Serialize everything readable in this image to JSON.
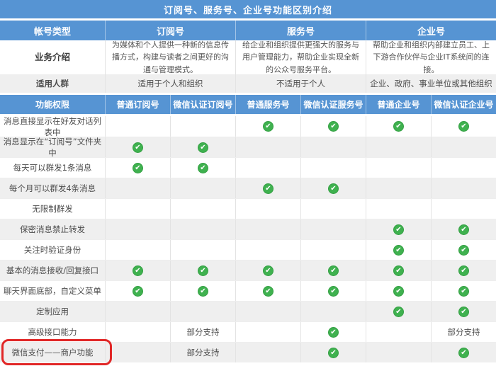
{
  "title": "订阅号、服务号、企业号功能区别介绍",
  "header": {
    "account_type_label": "帐号类型",
    "groups": [
      "订阅号",
      "服务号",
      "企业号"
    ]
  },
  "business_intro": {
    "label": "业务介绍",
    "cells": [
      "为媒体和个人提供一种新的信息传播方式，构建与读者之间更好的沟通与管理模式。",
      "给企业和组织提供更强大的服务与用户管理能力，帮助企业实现全新的公众号服务平台。",
      "帮助企业和组织内部建立员工、上下游合作伙伴与企业IT系统间的连接。"
    ]
  },
  "audience": {
    "label": "适用人群",
    "cells": [
      "适用于个人和组织",
      "不适用于个人",
      "企业、政府、事业单位或其他组织"
    ]
  },
  "permissions": {
    "label": "功能权限",
    "columns": [
      "普通订阅号",
      "微信认证订阅号",
      "普通服务号",
      "微信认证服务号",
      "普通企业号",
      "微信认证企业号"
    ]
  },
  "partial_support_label": "部分支持",
  "check_icon_glyph": "✔",
  "features": [
    {
      "label": "消息直接显示在好友对话列表中",
      "values": [
        "",
        "",
        "check",
        "check",
        "check",
        "check"
      ],
      "highlighted": false
    },
    {
      "label": "消息显示在“订阅号”文件夹中",
      "values": [
        "check",
        "check",
        "",
        "",
        "",
        ""
      ],
      "highlighted": false
    },
    {
      "label": "每天可以群发1条消息",
      "values": [
        "check",
        "check",
        "",
        "",
        "",
        ""
      ],
      "highlighted": false
    },
    {
      "label": "每个月可以群发4条消息",
      "values": [
        "",
        "",
        "check",
        "check",
        "",
        ""
      ],
      "highlighted": false
    },
    {
      "label": "无限制群发",
      "values": [
        "",
        "",
        "",
        "",
        "",
        ""
      ],
      "highlighted": false
    },
    {
      "label": "保密消息禁止转发",
      "values": [
        "",
        "",
        "",
        "",
        "check",
        "check"
      ],
      "highlighted": false
    },
    {
      "label": "关注时验证身份",
      "values": [
        "",
        "",
        "",
        "",
        "check",
        "check"
      ],
      "highlighted": false
    },
    {
      "label": "基本的消息接收/回复接口",
      "values": [
        "check",
        "check",
        "check",
        "check",
        "check",
        "check"
      ],
      "highlighted": false
    },
    {
      "label": "聊天界面底部，自定义菜单",
      "values": [
        "check",
        "check",
        "check",
        "check",
        "check",
        "check"
      ],
      "highlighted": false
    },
    {
      "label": "定制应用",
      "values": [
        "",
        "",
        "",
        "",
        "check",
        "check"
      ],
      "highlighted": false
    },
    {
      "label": "高级接口能力",
      "values": [
        "",
        "partial",
        "",
        "check",
        "",
        "partial"
      ],
      "highlighted": false
    },
    {
      "label": "微信支付——商户功能",
      "values": [
        "",
        "partial",
        "",
        "check",
        "",
        "check"
      ],
      "highlighted": true
    }
  ],
  "colors": {
    "header_blue": "#5694d3",
    "row_gray": "#efefef",
    "check_green": "#3fb14f",
    "highlight_red": "#e12727"
  }
}
